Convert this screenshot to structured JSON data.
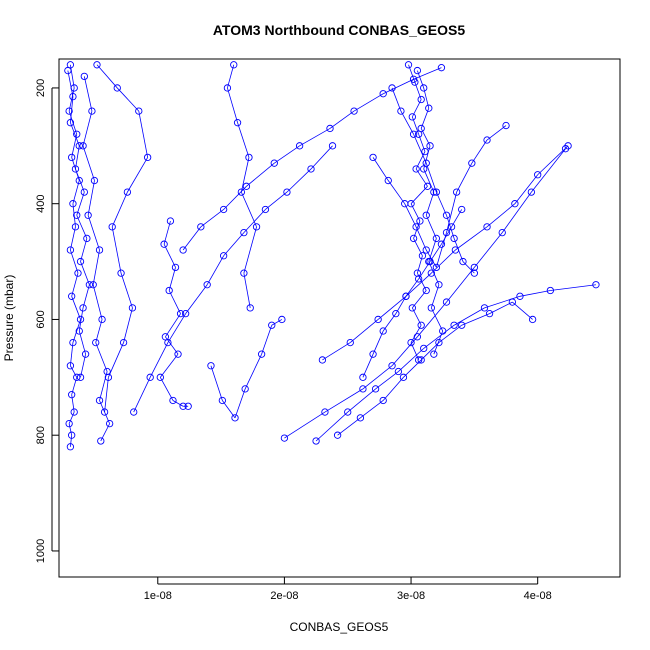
{
  "chart_data": {
    "type": "scatter",
    "title": "ATOM3 Northbound CONBAS_GEOS5",
    "xlabel": "CONBAS_GEOS5",
    "ylabel": "Pressure (mbar)",
    "xlim": [
      2.2e-09,
      4.65e-08
    ],
    "ylim": [
      1045,
      150
    ],
    "y_reversed": true,
    "x_ticks": [
      1e-08,
      2e-08,
      3e-08,
      4e-08
    ],
    "x_tick_labels": [
      "1e-08",
      "2e-08",
      "3e-08",
      "4e-08"
    ],
    "y_ticks": [
      200,
      400,
      600,
      800,
      1000
    ],
    "y_tick_labels": [
      "200",
      "400",
      "600",
      "800",
      "1000"
    ],
    "color": "#0000ff",
    "marker": "open-circle",
    "connect_points": true,
    "grid": false,
    "legend": "none",
    "series": [
      {
        "x": [
          3.1e-09,
          3.4e-09,
          3e-09,
          3.6e-09,
          3.2e-09,
          3.8e-09,
          3.3e-09,
          3.5e-09,
          3.1e-09,
          3.7e-09,
          3.2e-09,
          3.9e-09,
          3.3e-09,
          3.1e-09,
          3.6e-09,
          3.2e-09,
          3.4e-09,
          3e-09,
          3.2e-09,
          3.1e-09
        ],
        "y": [
          160,
          200,
          240,
          280,
          320,
          360,
          400,
          440,
          480,
          520,
          560,
          600,
          640,
          680,
          700,
          730,
          760,
          780,
          800,
          820
        ]
      },
      {
        "x": [
          2.9e-09,
          3.3e-09,
          3.1e-09,
          3.8e-09,
          3.5e-09,
          4.2e-09,
          3.6e-09,
          4.4e-09,
          3.9e-09,
          4.6e-09,
          4.1e-09,
          3.8e-09,
          4.3e-09,
          3.9e-09
        ],
        "y": [
          170,
          215,
          260,
          300,
          340,
          380,
          420,
          460,
          500,
          540,
          580,
          620,
          660,
          700
        ]
      },
      {
        "x": [
          4.2e-09,
          4.8e-09,
          4.1e-09,
          5e-09,
          4.5e-09,
          5.4e-09,
          4.9e-09,
          5.6e-09,
          5.1e-09,
          6e-09,
          5.4e-09,
          6.2e-09,
          5.5e-09
        ],
        "y": [
          180,
          240,
          300,
          360,
          420,
          480,
          540,
          600,
          640,
          690,
          740,
          780,
          810
        ]
      },
      {
        "x": [
          5.2e-09,
          6.8e-09,
          8.5e-09,
          9.2e-09,
          7.6e-09,
          6.4e-09,
          7.1e-09,
          8e-09,
          7.3e-09,
          6.1e-09,
          5.8e-09
        ],
        "y": [
          160,
          200,
          240,
          320,
          380,
          440,
          520,
          580,
          640,
          700,
          760
        ]
      },
      {
        "x": [
          1.1e-08,
          1.05e-08,
          1.14e-08,
          1.09e-08,
          1.18e-08,
          1.06e-08,
          1.16e-08,
          1.02e-08,
          1.12e-08,
          1.2e-08,
          1.24e-08
        ],
        "y": [
          430,
          470,
          510,
          550,
          590,
          630,
          660,
          700,
          740,
          750,
          750
        ]
      },
      {
        "x": [
          8.1e-09,
          9.4e-09,
          1.08e-08,
          1.22e-08,
          1.39e-08,
          1.52e-08,
          1.68e-08,
          1.85e-08,
          2.02e-08,
          2.21e-08,
          2.38e-08
        ],
        "y": [
          760,
          700,
          640,
          590,
          540,
          490,
          450,
          410,
          380,
          340,
          300
        ]
      },
      {
        "x": [
          1.2e-08,
          1.34e-08,
          1.52e-08,
          1.7e-08,
          1.92e-08,
          2.12e-08,
          2.36e-08,
          2.55e-08,
          2.78e-08,
          3.02e-08,
          3.24e-08
        ],
        "y": [
          480,
          440,
          410,
          370,
          330,
          300,
          270,
          240,
          210,
          185,
          165
        ]
      },
      {
        "x": [
          1.6e-08,
          1.55e-08,
          1.63e-08,
          1.72e-08,
          1.66e-08,
          1.78e-08,
          1.68e-08,
          1.73e-08
        ],
        "y": [
          160,
          200,
          260,
          320,
          380,
          440,
          520,
          580
        ]
      },
      {
        "x": [
          1.42e-08,
          1.51e-08,
          1.61e-08,
          1.69e-08,
          1.82e-08,
          1.9e-08,
          1.98e-08
        ],
        "y": [
          680,
          740,
          770,
          720,
          660,
          610,
          600
        ]
      },
      {
        "x": [
          2.25e-08,
          2.5e-08,
          2.72e-08,
          2.9e-08,
          3.1e-08,
          3.34e-08,
          3.58e-08,
          3.86e-08,
          4.1e-08,
          4.46e-08
        ],
        "y": [
          810,
          760,
          720,
          690,
          650,
          610,
          580,
          560,
          550,
          540
        ]
      },
      {
        "x": [
          2.42e-08,
          2.6e-08,
          2.78e-08,
          2.94e-08,
          3.08e-08,
          3.22e-08,
          3.4e-08,
          3.62e-08,
          3.8e-08,
          3.96e-08
        ],
        "y": [
          800,
          770,
          740,
          700,
          670,
          640,
          610,
          590,
          570,
          600
        ]
      },
      {
        "x": [
          2e-08,
          2.32e-08,
          2.62e-08,
          2.85e-08,
          3.05e-08,
          3.28e-08,
          3.5e-08,
          3.72e-08,
          3.95e-08,
          4.22e-08
        ],
        "y": [
          805,
          760,
          720,
          680,
          630,
          570,
          510,
          450,
          380,
          305
        ]
      },
      {
        "x": [
          2.3e-08,
          2.52e-08,
          2.74e-08,
          2.96e-08,
          3.16e-08,
          3.35e-08,
          3.6e-08,
          3.82e-08,
          4e-08,
          4.24e-08
        ],
        "y": [
          670,
          640,
          600,
          560,
          520,
          480,
          440,
          400,
          350,
          300
        ]
      },
      {
        "x": [
          2.7e-08,
          2.82e-08,
          2.95e-08,
          3.04e-08,
          3.12e-08,
          3.2e-08,
          3.28e-08,
          3.36e-08,
          3.48e-08,
          3.6e-08,
          3.75e-08
        ],
        "y": [
          320,
          360,
          400,
          440,
          480,
          510,
          450,
          380,
          330,
          290,
          265
        ]
      },
      {
        "x": [
          2.98e-08,
          3.03e-08,
          3.08e-08,
          3.01e-08,
          3.06e-08,
          3.11e-08,
          3.04e-08,
          3.13e-08,
          3e-08,
          3.07e-08,
          3.02e-08,
          3.09e-08,
          3.05e-08,
          3.12e-08,
          3.01e-08,
          3.08e-08,
          3e-08,
          3.06e-08
        ],
        "y": [
          160,
          190,
          220,
          250,
          280,
          310,
          340,
          370,
          400,
          430,
          460,
          490,
          520,
          550,
          580,
          610,
          640,
          670
        ]
      },
      {
        "x": [
          3.05e-08,
          3.1e-08,
          3.14e-08,
          3.08e-08,
          3.15e-08,
          3.1e-08,
          3.18e-08,
          3.12e-08,
          3.2e-08,
          3.14e-08,
          3.22e-08,
          3.16e-08,
          3.25e-08,
          3.18e-08
        ],
        "y": [
          170,
          200,
          235,
          270,
          300,
          340,
          380,
          420,
          460,
          500,
          540,
          580,
          620,
          660
        ]
      },
      {
        "x": [
          2.62e-08,
          2.7e-08,
          2.78e-08,
          2.88e-08,
          2.96e-08,
          3.06e-08,
          3.15e-08,
          3.24e-08,
          3.32e-08,
          3.4e-08
        ],
        "y": [
          700,
          660,
          620,
          590,
          560,
          530,
          500,
          470,
          440,
          410
        ]
      },
      {
        "x": [
          2.85e-08,
          2.92e-08,
          3.02e-08,
          3.12e-08,
          3.2e-08,
          3.28e-08,
          3.34e-08,
          3.41e-08,
          3.5e-08
        ],
        "y": [
          200,
          240,
          280,
          330,
          380,
          420,
          460,
          500,
          520
        ]
      }
    ]
  }
}
